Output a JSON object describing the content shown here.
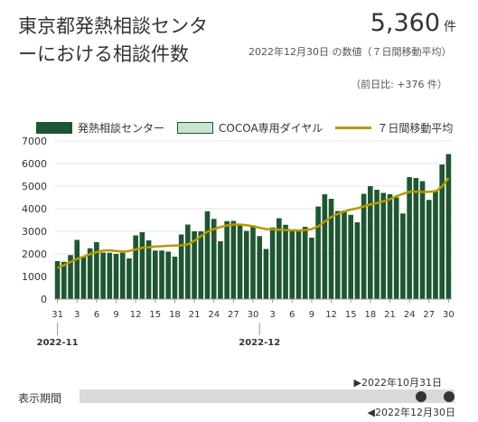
{
  "header": {
    "title": "東京都発熱相談センターにおける相談件数",
    "value": "5,360",
    "unit": "件",
    "subtitle": "2022年12月30日 の数値（７日間移動平均）",
    "change": "（前日比: +376 件）"
  },
  "legend": {
    "items": [
      {
        "label": "発熱相談センター",
        "color": "#1e5631"
      },
      {
        "label": "COCOA専用ダイヤル",
        "color": "#c8e6c9"
      },
      {
        "label": "７日間移動平均",
        "color": "#b59a00"
      }
    ]
  },
  "slider": {
    "label": "表示期間",
    "start_label": "▶2022年10月31日",
    "end_label": "◀2022年12月30日"
  },
  "chart_data": {
    "type": "bar",
    "ylim": [
      0,
      7000
    ],
    "yticks": [
      0,
      1000,
      2000,
      3000,
      4000,
      5000,
      6000,
      7000
    ],
    "x_tick_labels": [
      {
        "index": 0,
        "label": "31"
      },
      {
        "index": 3,
        "label": "3"
      },
      {
        "index": 6,
        "label": "6"
      },
      {
        "index": 9,
        "label": "9"
      },
      {
        "index": 12,
        "label": "12"
      },
      {
        "index": 15,
        "label": "15"
      },
      {
        "index": 18,
        "label": "18"
      },
      {
        "index": 21,
        "label": "21"
      },
      {
        "index": 24,
        "label": "24"
      },
      {
        "index": 27,
        "label": "27"
      },
      {
        "index": 30,
        "label": "30"
      },
      {
        "index": 33,
        "label": "3"
      },
      {
        "index": 36,
        "label": "6"
      },
      {
        "index": 39,
        "label": "9"
      },
      {
        "index": 42,
        "label": "12"
      },
      {
        "index": 45,
        "label": "15"
      },
      {
        "index": 48,
        "label": "18"
      },
      {
        "index": 51,
        "label": "21"
      },
      {
        "index": 54,
        "label": "24"
      },
      {
        "index": 57,
        "label": "27"
      },
      {
        "index": 60,
        "label": "30"
      }
    ],
    "month_labels": [
      {
        "index": 0,
        "label": "2022-11"
      },
      {
        "index": 31,
        "label": "2022-12"
      }
    ],
    "series": [
      {
        "name": "発熱相談センター",
        "values": [
          1680,
          1650,
          1950,
          2620,
          1880,
          2250,
          2520,
          2060,
          2050,
          2000,
          2050,
          1800,
          2820,
          2960,
          2600,
          2150,
          2150,
          2100,
          1880,
          2860,
          3300,
          3000,
          3000,
          3890,
          3550,
          2560,
          3450,
          3460,
          3270,
          3020,
          3240,
          2790,
          2220,
          3170,
          3580,
          3290,
          3050,
          3000,
          3200,
          2720,
          4100,
          4640,
          4440,
          3900,
          3920,
          3730,
          3400,
          4660,
          5000,
          4840,
          4700,
          4640,
          4500,
          3790,
          5400,
          5360,
          5220,
          4390,
          4820,
          5960,
          6420
        ]
      },
      {
        "name": "７日間移動平均",
        "values": [
          1380,
          1500,
          1650,
          1780,
          1880,
          1990,
          2080,
          2150,
          2160,
          2130,
          2100,
          2130,
          2200,
          2270,
          2290,
          2330,
          2340,
          2360,
          2370,
          2380,
          2420,
          2580,
          2780,
          2980,
          3100,
          3190,
          3260,
          3300,
          3300,
          3270,
          3230,
          3160,
          3100,
          3090,
          3070,
          3060,
          3050,
          3040,
          3060,
          3100,
          3220,
          3430,
          3630,
          3770,
          3880,
          3960,
          4020,
          4100,
          4190,
          4250,
          4330,
          4420,
          4550,
          4660,
          4750,
          4760,
          4740,
          4750,
          4770,
          4980,
          5360
        ]
      }
    ]
  }
}
